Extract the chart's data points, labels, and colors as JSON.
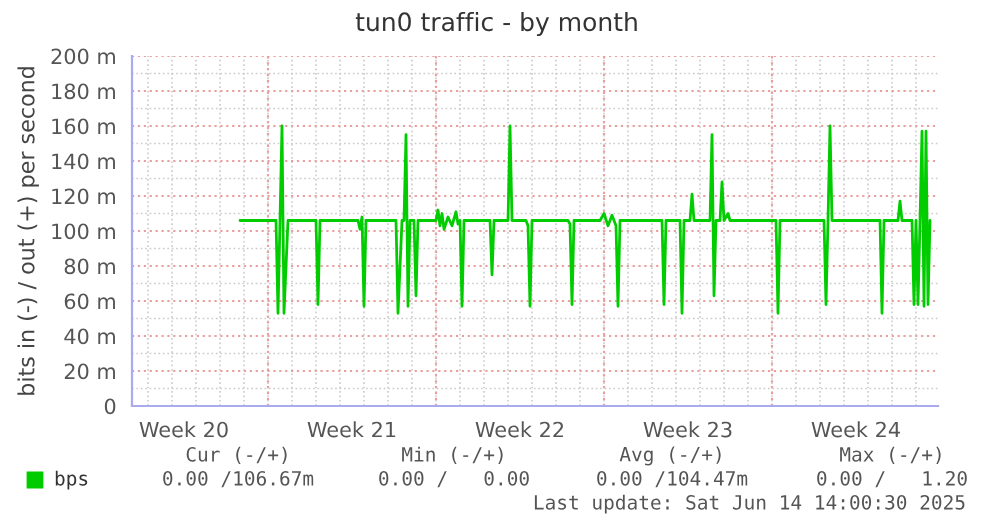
{
  "chart_data": {
    "type": "line",
    "title": "tun0 traffic - by month",
    "ylabel": "bits in (-) / out (+) per second",
    "xlim": [
      "2025-05-12T08:00",
      "2025-06-14T22:00"
    ],
    "xticks": [
      {
        "value": "2025-05-14T12:00",
        "label": "Week 20"
      },
      {
        "value": "2025-05-21T12:00",
        "label": "Week 21"
      },
      {
        "value": "2025-05-28T12:00",
        "label": "Week 22"
      },
      {
        "value": "2025-06-04T12:00",
        "label": "Week 23"
      },
      {
        "value": "2025-06-11T12:00",
        "label": "Week 24"
      }
    ],
    "ylim": [
      0,
      200
    ],
    "yticks": [
      {
        "value": 0,
        "label": "0"
      },
      {
        "value": 20,
        "label": "20 m"
      },
      {
        "value": 40,
        "label": "40 m"
      },
      {
        "value": 60,
        "label": "60 m"
      },
      {
        "value": 80,
        "label": "80 m"
      },
      {
        "value": 100,
        "label": "100 m"
      },
      {
        "value": 120,
        "label": "120 m"
      },
      {
        "value": 140,
        "label": "140 m"
      },
      {
        "value": 160,
        "label": "160 m"
      },
      {
        "value": 180,
        "label": "180 m"
      },
      {
        "value": 200,
        "label": "200 m"
      }
    ],
    "ref_lines": [
      {
        "axis": "x",
        "value": "2025-05-18T00:00",
        "color": "#e8a0a0",
        "line_style": "dotted"
      },
      {
        "axis": "x",
        "value": "2025-05-25T00:00",
        "color": "#e8a0a0",
        "line_style": "dotted"
      },
      {
        "axis": "x",
        "value": "2025-06-01T00:00",
        "color": "#e8a0a0",
        "line_style": "dotted"
      },
      {
        "axis": "x",
        "value": "2025-06-08T00:00",
        "color": "#e8a0a0",
        "line_style": "dotted"
      }
    ],
    "grid": true,
    "legend": "bottom",
    "line_style": "solid",
    "marker": "none",
    "series": [
      {
        "name": "bps",
        "color": "#00cc00",
        "x": [
          "2025-05-16T20:00",
          "2025-05-18T08:00",
          "2025-05-18T10:00",
          "2025-05-18T12:00",
          "2025-05-18T14:00",
          "2025-05-18T16:00",
          "2025-05-18T20:00",
          "2025-05-20T00:00",
          "2025-05-20T02:00",
          "2025-05-20T04:00",
          "2025-05-21T18:00",
          "2025-05-21T20:00",
          "2025-05-21T22:00",
          "2025-05-22T00:00",
          "2025-05-22T02:00",
          "2025-05-23T08:00",
          "2025-05-23T10:00",
          "2025-05-23T14:00",
          "2025-05-23T16:00",
          "2025-05-23T18:00",
          "2025-05-23T20:00",
          "2025-05-23T22:00",
          "2025-05-24T02:00",
          "2025-05-24T04:00",
          "2025-05-24T06:00",
          "2025-05-25T00:00",
          "2025-05-25T02:00",
          "2025-05-25T04:00",
          "2025-05-25T06:00",
          "2025-05-25T08:00",
          "2025-05-25T12:00",
          "2025-05-25T16:00",
          "2025-05-25T20:00",
          "2025-05-25T22:00",
          "2025-05-26T00:00",
          "2025-05-26T02:00",
          "2025-05-26T04:00",
          "2025-05-27T06:00",
          "2025-05-27T08:00",
          "2025-05-27T10:00",
          "2025-05-28T00:00",
          "2025-05-28T02:00",
          "2025-05-28T04:00",
          "2025-05-28T18:00",
          "2025-05-28T20:00",
          "2025-05-28T22:00",
          "2025-05-29T00:00",
          "2025-05-30T12:00",
          "2025-05-30T14:00",
          "2025-05-30T16:00",
          "2025-05-30T18:00",
          "2025-05-31T20:00",
          "2025-06-01T00:00",
          "2025-06-01T04:00",
          "2025-06-01T08:00",
          "2025-06-01T12:00",
          "2025-06-01T14:00",
          "2025-06-01T16:00",
          "2025-06-03T10:00",
          "2025-06-03T12:00",
          "2025-06-03T14:00",
          "2025-06-04T04:00",
          "2025-06-04T06:00",
          "2025-06-04T08:00",
          "2025-06-04T14:00",
          "2025-06-04T16:00",
          "2025-06-04T18:00",
          "2025-06-05T10:00",
          "2025-06-05T12:00",
          "2025-06-05T14:00",
          "2025-06-05T16:00",
          "2025-06-05T20:00",
          "2025-06-05T22:00",
          "2025-06-06T00:00",
          "2025-06-06T04:00",
          "2025-06-06T06:00",
          "2025-06-08T04:00",
          "2025-06-08T06:00",
          "2025-06-08T08:00",
          "2025-06-10T04:00",
          "2025-06-10T06:00",
          "2025-06-10T08:00",
          "2025-06-10T10:00",
          "2025-06-10T12:00",
          "2025-06-12T12:00",
          "2025-06-12T14:00",
          "2025-06-12T16:00",
          "2025-06-13T06:00",
          "2025-06-13T08:00",
          "2025-06-13T10:00",
          "2025-06-13T20:00",
          "2025-06-13T22:00",
          "2025-06-14T00:00",
          "2025-06-14T02:00",
          "2025-06-14T04:00",
          "2025-06-14T06:00",
          "2025-06-14T08:00",
          "2025-06-14T10:00",
          "2025-06-14T12:00",
          "2025-06-14T14:00"
        ],
        "values": [
          106,
          106,
          53,
          106,
          160,
          53,
          106,
          106,
          58,
          106,
          106,
          101,
          108,
          57,
          106,
          106,
          53,
          106,
          106,
          155,
          57,
          106,
          106,
          63,
          106,
          106,
          112,
          103,
          110,
          101,
          108,
          103,
          111,
          104,
          106,
          57,
          106,
          106,
          75,
          106,
          106,
          160,
          106,
          106,
          103,
          57,
          106,
          106,
          104,
          58,
          106,
          106,
          110,
          103,
          109,
          103,
          57,
          106,
          106,
          58,
          106,
          106,
          53,
          106,
          106,
          121,
          106,
          106,
          155,
          63,
          106,
          106,
          128,
          106,
          110,
          106,
          106,
          53,
          106,
          106,
          58,
          106,
          160,
          106,
          106,
          53,
          106,
          106,
          117,
          106,
          106,
          58,
          106,
          58,
          106,
          157,
          57,
          157,
          58,
          106
        ]
      }
    ],
    "annotations": [
      "Cur (-/+)",
      "Min (-/+)",
      "Avg (-/+)",
      "Max (-/+)",
      "0.00 /106.67m",
      "0.00 /   0.00",
      "0.00 /104.47m",
      "0.00 /   1.20",
      "Last update: Sat Jun 14 14:00:30 2025"
    ]
  }
}
